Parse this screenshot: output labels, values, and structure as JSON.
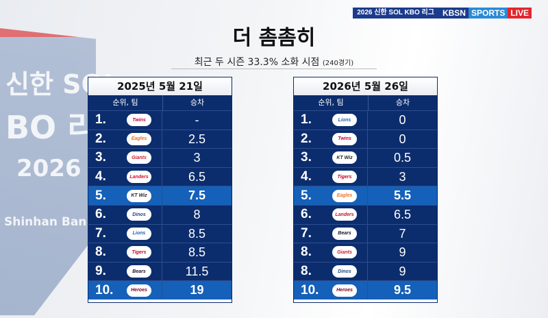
{
  "background": {
    "line1": "신한 SOL",
    "line2": "BO 리",
    "line3": "2026",
    "line4": "Shinhan Ban"
  },
  "broadcast": {
    "league": "2026 신한 SOL KBO 리그",
    "channel": "KBSN",
    "sports": "SPORTS",
    "live": "LIVE"
  },
  "title": "더 촘촘히",
  "subtitle": "최근 두 시즌 33.3% 소화 시점",
  "subtitle_small": "(240경기)",
  "tables": [
    {
      "date": "2025년 5월 21일",
      "col_rank": "순위, 팀",
      "col_gb": "승차",
      "rows": [
        {
          "rank": "1.",
          "team": "Twins",
          "color": "#c6013b",
          "gb": "-"
        },
        {
          "rank": "2.",
          "team": "Eagles",
          "color": "#f36f21",
          "gb": "2.5"
        },
        {
          "rank": "3.",
          "team": "Giants",
          "color": "#d11d2b",
          "gb": "3"
        },
        {
          "rank": "4.",
          "team": "Landers",
          "color": "#ce0e2d",
          "gb": "6.5"
        },
        {
          "rank": "5.",
          "team": "KT Wiz",
          "color": "#222222",
          "gb": "7.5"
        },
        {
          "rank": "6.",
          "team": "Dinos",
          "color": "#1d467f",
          "gb": "8"
        },
        {
          "rank": "7.",
          "team": "Lions",
          "color": "#1f5fb3",
          "gb": "8.5"
        },
        {
          "rank": "8.",
          "team": "Tigers",
          "color": "#c70125",
          "gb": "8.5"
        },
        {
          "rank": "9.",
          "team": "Bears",
          "color": "#131230",
          "gb": "11.5"
        },
        {
          "rank": "10.",
          "team": "Heroes",
          "color": "#820024",
          "gb": "19"
        }
      ]
    },
    {
      "date": "2026년 5월 26일",
      "col_rank": "순위, 팀",
      "col_gb": "승차",
      "rows": [
        {
          "rank": "1.",
          "team": "Lions",
          "color": "#1f5fb3",
          "gb": "0"
        },
        {
          "rank": "2.",
          "team": "Twins",
          "color": "#c6013b",
          "gb": "0"
        },
        {
          "rank": "3.",
          "team": "KT Wiz",
          "color": "#222222",
          "gb": "0.5"
        },
        {
          "rank": "4.",
          "team": "Tigers",
          "color": "#c70125",
          "gb": "3"
        },
        {
          "rank": "5.",
          "team": "Eagles",
          "color": "#f36f21",
          "gb": "5.5"
        },
        {
          "rank": "6.",
          "team": "Landers",
          "color": "#ce0e2d",
          "gb": "6.5"
        },
        {
          "rank": "7.",
          "team": "Bears",
          "color": "#131230",
          "gb": "7"
        },
        {
          "rank": "8.",
          "team": "Giants",
          "color": "#d11d2b",
          "gb": "9"
        },
        {
          "rank": "8.",
          "team": "Dinos",
          "color": "#1d467f",
          "gb": "9"
        },
        {
          "rank": "10.",
          "team": "Heroes",
          "color": "#820024",
          "gb": "9.5"
        }
      ]
    }
  ],
  "highlight_rows": [
    4,
    9
  ]
}
